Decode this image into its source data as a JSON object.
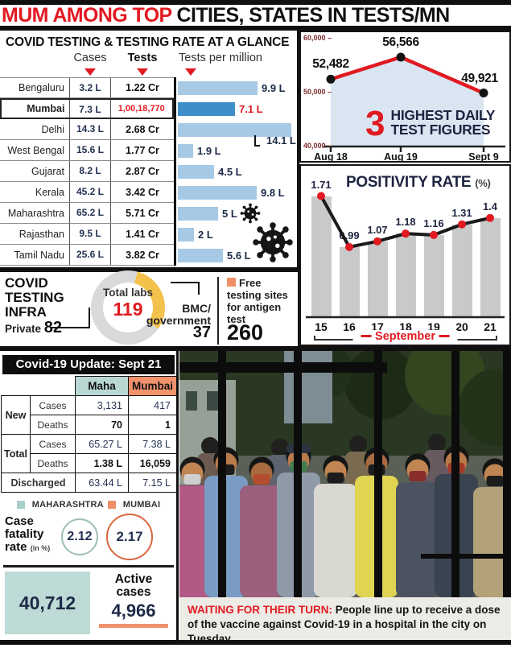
{
  "header": {
    "title_red": "MUM AMONG TOP",
    "title_black": "CITIES, STATES IN TESTS/MN"
  },
  "glance": {
    "columns": {
      "cases": "Cases",
      "tests": "Tests",
      "tpm": "Tests per million"
    }
  },
  "daily": {
    "big": "3",
    "title_line1": "HIGHEST DAILY",
    "title_line2": "TEST FIGURES"
  },
  "positivity": {
    "title": "POSITIVITY RATE",
    "pct": "(%)"
  },
  "infra": {
    "title": "COVID TESTING INFRA",
    "total_label": "Total labs",
    "total": "119",
    "private_label": "Private",
    "private": "82",
    "bmc_line1": "BMC/",
    "bmc_line2": "government",
    "bmc": "37",
    "free_label": "Free testing sites for antigen test",
    "free": "260"
  },
  "update": {
    "title": "Covid-19 Update: Sept 21",
    "col_maha": "Maha",
    "col_mumbai": "Mumbai",
    "row_new": "New",
    "row_total": "Total",
    "row_cases": "Cases",
    "row_deaths": "Deaths",
    "row_discharged": "Discharged",
    "new_cases": {
      "maha": "3,131",
      "mumbai": "417"
    },
    "new_deaths": {
      "maha": "70",
      "mumbai": "1"
    },
    "total_cases": {
      "maha": "65.27 L",
      "mumbai": "7.38 L"
    },
    "total_deaths": {
      "maha": "1.38 L",
      "mumbai": "16,059"
    },
    "discharged": {
      "maha": "63.44 L",
      "mumbai": "7.15 L"
    }
  },
  "legend": {
    "maha": "MAHARASHTRA",
    "mumbai": "MUMBAI"
  },
  "fatality": {
    "label": "Case fatality rate",
    "unit": "(in %)",
    "maha": "2.12",
    "mumbai": "2.17"
  },
  "active": {
    "highlight": "40,712",
    "label": "Active cases",
    "value": "4,966"
  },
  "caption": {
    "lead": "WAITING FOR THEIR TURN:",
    "text": "People line up to receive a dose of the vaccine against Covid-19 in a hospital in the city on Tuesday"
  },
  "colors": {
    "red": "#e11a22",
    "bar_blue": "#a6c9e6",
    "bar_blue_dark": "#3e8ec9",
    "gray_bar": "#c9c9c9",
    "teal": "#bedad6",
    "orange": "#f0926c",
    "yellow": "#f2c24d",
    "navy": "#1d2a47",
    "area_blue": "#d9e6f2"
  },
  "chart_data": [
    {
      "type": "bar",
      "id": "glance",
      "title": "COVID TESTING & TESTING RATE AT A GLANCE",
      "ylabel": "Tests per million (lakh)",
      "rows": [
        {
          "name": "Bengaluru",
          "cases": "3.2 L",
          "tests": "1.22 Cr",
          "tpm": 9.9,
          "tpm_label": "9.9 L"
        },
        {
          "name": "Mumbai",
          "cases": "7.3 L",
          "tests": "1,00,18,770",
          "tpm": 7.1,
          "tpm_label": "7.1 L",
          "highlight": true
        },
        {
          "name": "Delhi",
          "cases": "14.3 L",
          "tests": "2.68 Cr",
          "tpm": 14.1,
          "tpm_label": "14.1 L",
          "callout": true
        },
        {
          "name": "West Bengal",
          "cases": "15.6 L",
          "tests": "1.77 Cr",
          "tpm": 1.9,
          "tpm_label": "1.9 L"
        },
        {
          "name": "Gujarat",
          "cases": "8.2 L",
          "tests": "2.87 Cr",
          "tpm": 4.5,
          "tpm_label": "4.5 L"
        },
        {
          "name": "Kerala",
          "cases": "45.2 L",
          "tests": "3.42 Cr",
          "tpm": 9.8,
          "tpm_label": "9.8 L"
        },
        {
          "name": "Maharashtra",
          "cases": "65.2 L",
          "tests": "5.71 Cr",
          "tpm": 5,
          "tpm_label": "5 L"
        },
        {
          "name": "Rajasthan",
          "cases": "9.5 L",
          "tests": "1.41 Cr",
          "tpm": 2,
          "tpm_label": "2 L"
        },
        {
          "name": "Tamil Nadu",
          "cases": "25.6 L",
          "tests": "3.82 Cr",
          "tpm": 5.6,
          "tpm_label": "5.6 L"
        }
      ]
    },
    {
      "type": "line",
      "id": "daily_tests",
      "title": "3 HIGHEST DAILY TEST FIGURES",
      "ylim": [
        40000,
        60000
      ],
      "y_ticks": [
        "60,000",
        "50,000",
        "40,000"
      ],
      "points": [
        {
          "x": "Aug 18",
          "value": 52482,
          "label": "52,482"
        },
        {
          "x": "Aug 19",
          "value": 56566,
          "label": "56,566"
        },
        {
          "x": "Sept 9",
          "value": 49921,
          "label": "49,921"
        }
      ]
    },
    {
      "type": "bar",
      "subtype": "bars+line",
      "id": "positivity",
      "title": "POSITIVITY RATE (%)",
      "xlabel": "September",
      "ylim": [
        0,
        2
      ],
      "points": [
        {
          "x": "15",
          "value": 1.71
        },
        {
          "x": "16",
          "value": 0.99
        },
        {
          "x": "17",
          "value": 1.07
        },
        {
          "x": "18",
          "value": 1.18
        },
        {
          "x": "19",
          "value": 1.16
        },
        {
          "x": "20",
          "value": 1.31
        },
        {
          "x": "21",
          "value": 1.4
        }
      ]
    },
    {
      "type": "pie",
      "id": "testing-labs",
      "title": "Total labs 119",
      "slices": [
        {
          "label": "Private",
          "value": 82,
          "color": "#d9d9d9"
        },
        {
          "label": "BMC/government",
          "value": 37,
          "color": "#f2c24d"
        }
      ]
    }
  ]
}
